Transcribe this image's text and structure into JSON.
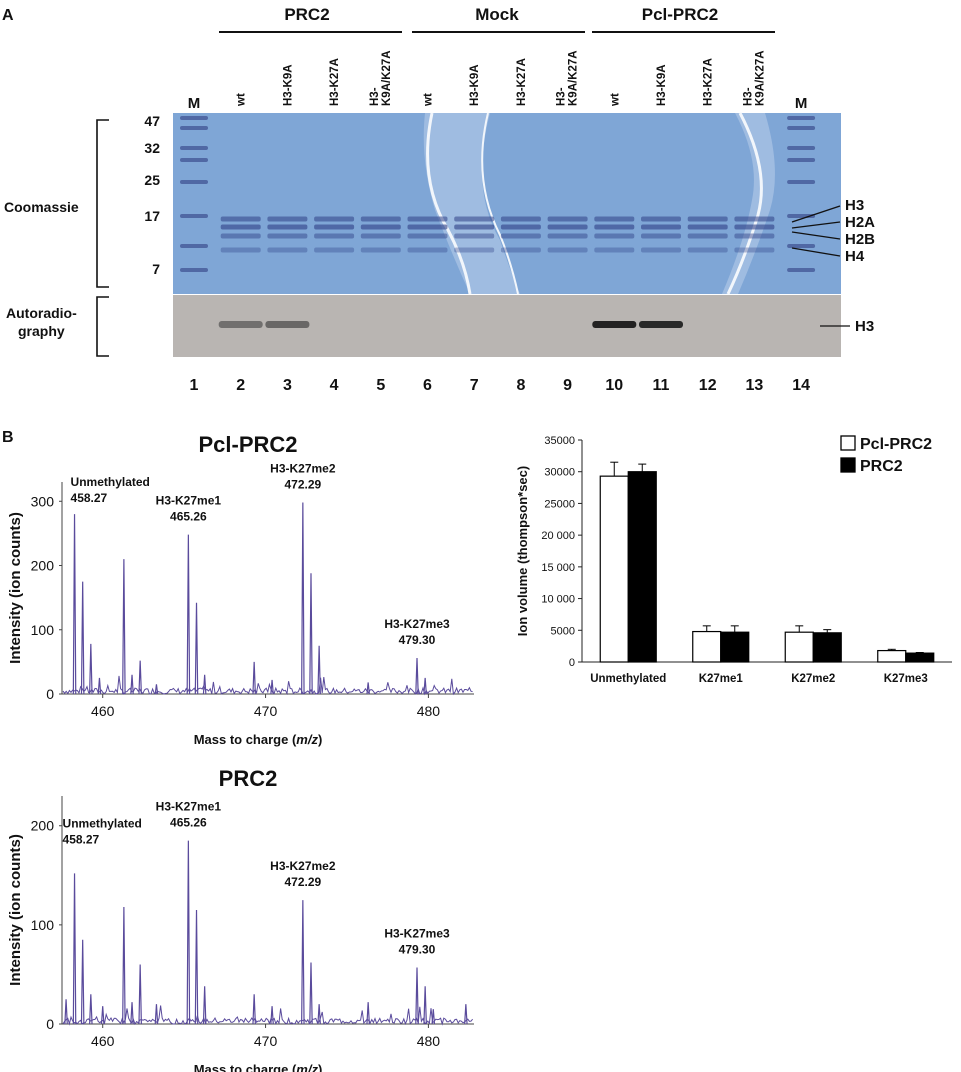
{
  "panel_a": {
    "panel_label": "A",
    "groups": [
      {
        "label": "PRC2"
      },
      {
        "label": "Mock"
      },
      {
        "label": "Pcl-PRC2"
      }
    ],
    "lane_headers": [
      "M",
      "wt",
      "H3-K9A",
      "H3-K27A",
      "H3-\nK9A/K27A",
      "wt",
      "H3-K9A",
      "H3-K27A",
      "H3-\nK9A/K27A",
      "wt",
      "H3-K9A",
      "H3-K27A",
      "H3-\nK9A/K27A",
      "M"
    ],
    "lane_numbers": [
      "1",
      "2",
      "3",
      "4",
      "5",
      "6",
      "7",
      "8",
      "9",
      "10",
      "11",
      "12",
      "13",
      "14"
    ],
    "marker_sizes": [
      "47",
      "32",
      "25",
      "17",
      "7"
    ],
    "coomassie_label": "Coomassie",
    "autorad_label_line1": "Autoradio-",
    "autorad_label_line2": "graphy",
    "band_labels": [
      "H3",
      "H2A",
      "H2B",
      "H4"
    ],
    "autorad_band_label": "H3",
    "gel_color": "#7fa6d6",
    "autorad_color": "#b9b5b2",
    "autorad_bands": [
      {
        "lane": "2",
        "level": 0.45
      },
      {
        "lane": "3",
        "level": 0.5
      },
      {
        "lane": "10",
        "level": 0.95
      },
      {
        "lane": "11",
        "level": 0.9
      }
    ]
  },
  "panel_b": {
    "panel_label": "B",
    "spectrum_color": "#5a4b9c",
    "spectra": [
      {
        "title": "Pcl-PRC2",
        "ylabel": "Intensity (ion counts)",
        "xlabel_prefix": "Mass to charge (",
        "xlabel_italic": "m/z",
        "xlabel_suffix": ")",
        "xlim": [
          457.5,
          482.8
        ],
        "ylim": [
          0,
          330
        ],
        "x_ticks": [
          "460",
          "470",
          "480"
        ],
        "y_ticks": [
          "0",
          "100",
          "200",
          "300"
        ],
        "peaks": [
          {
            "mz": 458.27,
            "intensity": 280
          },
          {
            "mz": 458.77,
            "intensity": 175
          },
          {
            "mz": 459.27,
            "intensity": 78
          },
          {
            "mz": 459.8,
            "intensity": 25
          },
          {
            "mz": 461.3,
            "intensity": 210
          },
          {
            "mz": 461.8,
            "intensity": 30
          },
          {
            "mz": 462.3,
            "intensity": 52
          },
          {
            "mz": 463.3,
            "intensity": 15
          },
          {
            "mz": 465.26,
            "intensity": 248
          },
          {
            "mz": 465.76,
            "intensity": 142
          },
          {
            "mz": 466.26,
            "intensity": 30
          },
          {
            "mz": 469.3,
            "intensity": 50
          },
          {
            "mz": 470.4,
            "intensity": 22
          },
          {
            "mz": 472.29,
            "intensity": 298
          },
          {
            "mz": 472.79,
            "intensity": 188
          },
          {
            "mz": 473.29,
            "intensity": 75
          },
          {
            "mz": 476.3,
            "intensity": 18
          },
          {
            "mz": 479.3,
            "intensity": 56
          },
          {
            "mz": 479.8,
            "intensity": 25
          }
        ],
        "annotations": [
          {
            "name": "Unmethylated",
            "value": "458.27",
            "mz": 458.27,
            "intensity": 280
          },
          {
            "name": "H3-K27me1",
            "value": "465.26",
            "mz": 465.26,
            "intensity": 248
          },
          {
            "name": "H3-K27me2",
            "value": "472.29",
            "mz": 472.29,
            "intensity": 298
          },
          {
            "name": "H3-K27me3",
            "value": "479.30",
            "mz": 479.3,
            "intensity": 56
          }
        ]
      },
      {
        "title": "PRC2",
        "ylabel": "Intensity (ion counts)",
        "xlabel_prefix": "Mass to charge (",
        "xlabel_italic": "m/z",
        "xlabel_suffix": ")",
        "xlim": [
          457.5,
          482.8
        ],
        "ylim": [
          0,
          230
        ],
        "x_ticks": [
          "460",
          "470",
          "480"
        ],
        "y_ticks": [
          "0",
          "100",
          "200"
        ],
        "peaks": [
          {
            "mz": 457.75,
            "intensity": 25
          },
          {
            "mz": 458.27,
            "intensity": 152
          },
          {
            "mz": 458.77,
            "intensity": 85
          },
          {
            "mz": 459.27,
            "intensity": 30
          },
          {
            "mz": 460.0,
            "intensity": 18
          },
          {
            "mz": 461.3,
            "intensity": 118
          },
          {
            "mz": 461.8,
            "intensity": 22
          },
          {
            "mz": 462.3,
            "intensity": 60
          },
          {
            "mz": 463.3,
            "intensity": 20
          },
          {
            "mz": 465.26,
            "intensity": 185
          },
          {
            "mz": 465.76,
            "intensity": 115
          },
          {
            "mz": 466.26,
            "intensity": 38
          },
          {
            "mz": 469.3,
            "intensity": 30
          },
          {
            "mz": 470.4,
            "intensity": 18
          },
          {
            "mz": 472.29,
            "intensity": 125
          },
          {
            "mz": 472.79,
            "intensity": 62
          },
          {
            "mz": 473.29,
            "intensity": 20
          },
          {
            "mz": 476.3,
            "intensity": 22
          },
          {
            "mz": 479.3,
            "intensity": 57
          },
          {
            "mz": 479.8,
            "intensity": 38
          },
          {
            "mz": 480.3,
            "intensity": 15
          },
          {
            "mz": 482.3,
            "intensity": 20
          }
        ],
        "annotations": [
          {
            "name": "Unmethylated",
            "value": "458.27",
            "mz": 458.27,
            "intensity": 152
          },
          {
            "name": "H3-K27me1",
            "value": "465.26",
            "mz": 465.26,
            "intensity": 185
          },
          {
            "name": "H3-K27me2",
            "value": "472.29",
            "mz": 472.29,
            "intensity": 125
          },
          {
            "name": "H3-K27me3",
            "value": "479.30",
            "mz": 479.3,
            "intensity": 57
          }
        ]
      }
    ]
  },
  "chart_data": {
    "type": "bar",
    "categories": [
      "Unmethylated",
      "K27me1",
      "K27me2",
      "K27me3"
    ],
    "series": [
      {
        "name": "Pcl-PRC2",
        "color": "#ffffff",
        "values": [
          29300,
          4800,
          4700,
          1800
        ],
        "errors": [
          2200,
          900,
          1000,
          200
        ]
      },
      {
        "name": "PRC2",
        "color": "#000000",
        "values": [
          30000,
          4700,
          4600,
          1400
        ],
        "errors": [
          1200,
          1000,
          500,
          100
        ]
      }
    ],
    "ylabel": "Ion volume (thompson*sec)",
    "xlabel": "",
    "ylim": [
      0,
      35000
    ],
    "y_ticks": [
      "0",
      "5000",
      "10 000",
      "15 000",
      "20 000",
      "25000",
      "30000",
      "35000"
    ],
    "grid": false,
    "legend": "top-right"
  }
}
